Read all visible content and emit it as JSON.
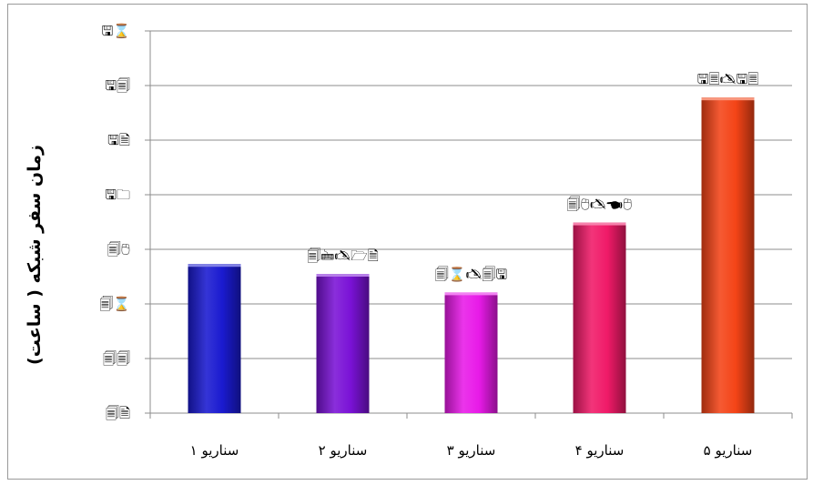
{
  "chart_data": {
    "type": "bar",
    "ylabel": "زمان سفر شبکه ( ساعت)",
    "categories": [
      "سناریو ۱",
      "سناریو ۲",
      "سناریو ۳",
      "سناریو ۴",
      "سناریو ۵"
    ],
    "values": [
      2.73,
      2.55,
      2.21,
      3.49,
      5.78
    ],
    "data_labels": [
      "",
      "🗐🖮🖎🗁🗎",
      "🗐⌛🖎🗐🖫",
      "🗐🖰🖎🖜🖰",
      "🖫🗏🖎🖫🗏"
    ],
    "ylim": [
      0,
      7
    ],
    "yticks": [
      0,
      1,
      2,
      3,
      4,
      5,
      6,
      7
    ],
    "ytick_labels": [
      "🗐🗎",
      "🗐🗐",
      "🗐⌛",
      "🗐🖰",
      "🖫🗀",
      "🖫🗎",
      "🖫🗐",
      "🖫⌛"
    ],
    "grid": true,
    "legend": "none",
    "colors": [
      "#1a1ad0",
      "#7a12d6",
      "#e81ae8",
      "#f01a68",
      "#f44417"
    ]
  }
}
